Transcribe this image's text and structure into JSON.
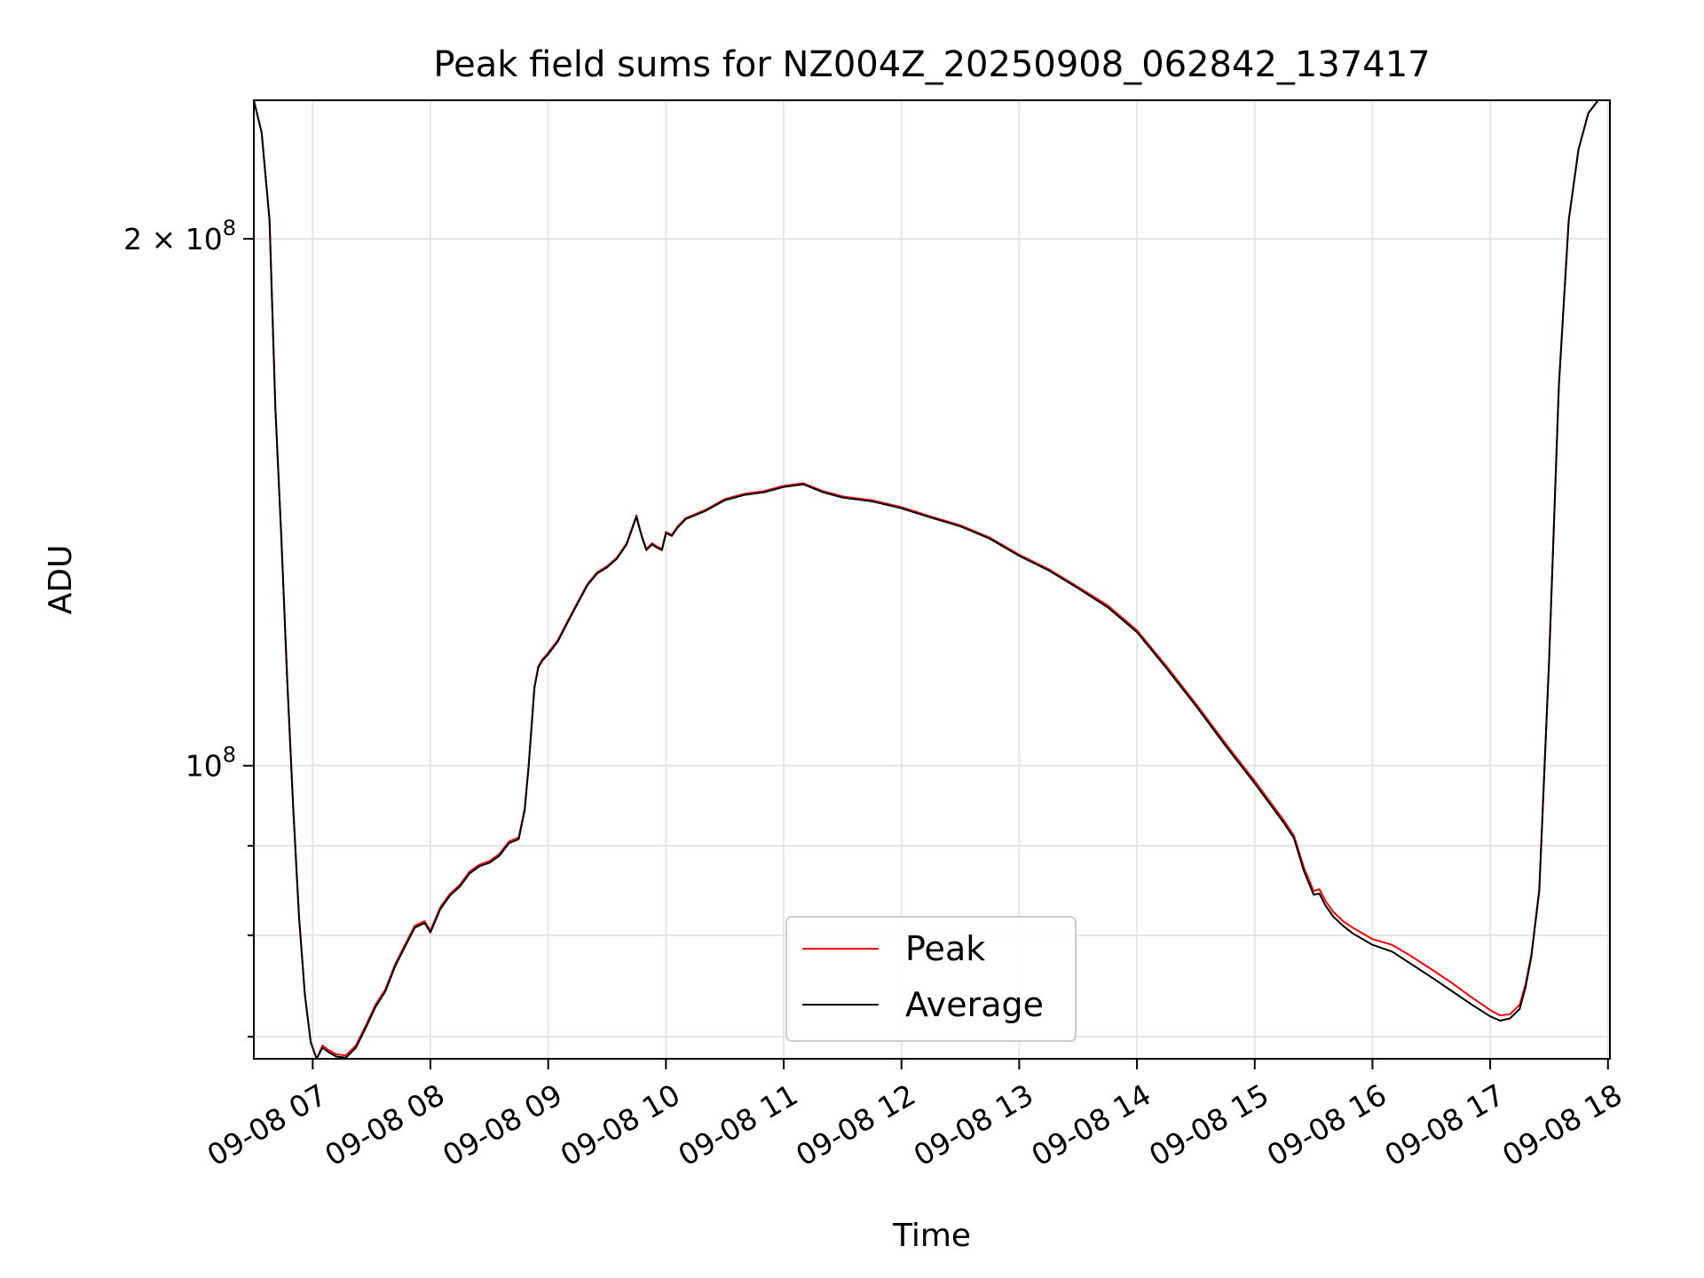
{
  "chart_data": {
    "type": "line",
    "title": "Peak field sums for NZ004Z_20250908_062842_137417",
    "xlabel": "Time",
    "ylabel": "ADU",
    "y_scale": "log",
    "xlim": [
      "09-08 06:30",
      "09-08 18:01"
    ],
    "ylim": [
      68000000,
      240000000
    ],
    "x_tick_labels": [
      "09-08 07",
      "09-08 08",
      "09-08 09",
      "09-08 10",
      "09-08 11",
      "09-08 12",
      "09-08 13",
      "09-08 14",
      "09-08 15",
      "09-08 16",
      "09-08 17",
      "09-08 18"
    ],
    "y_major_tick_labels": [
      {
        "value": 100000000,
        "base": "10",
        "exp": "8"
      },
      {
        "value": 200000000,
        "mantissa": "2 × 10",
        "exp": "8"
      }
    ],
    "y_minor_ticks": [
      70000000,
      80000000,
      90000000
    ],
    "grid": true,
    "legend": {
      "position": "lower center"
    },
    "series": [
      {
        "name": "Peak",
        "color": "#ff0000",
        "x": [
          "06:30",
          "06:34",
          "06:38",
          "06:41",
          "06:44",
          "06:47",
          "06:50",
          "06:53",
          "06:56",
          "06:59",
          "07:02",
          "07:05",
          "07:08",
          "07:12",
          "07:17",
          "07:22",
          "07:27",
          "07:32",
          "07:37",
          "07:42",
          "07:47",
          "07:52",
          "07:57",
          "08:00",
          "08:05",
          "08:10",
          "08:15",
          "08:20",
          "08:25",
          "08:30",
          "08:35",
          "08:40",
          "08:45",
          "08:48",
          "08:50",
          "08:53",
          "08:55",
          "08:57",
          "09:00",
          "09:05",
          "09:10",
          "09:15",
          "09:20",
          "09:25",
          "09:30",
          "09:35",
          "09:40",
          "09:43",
          "09:45",
          "09:46",
          "09:48",
          "09:50",
          "09:53",
          "09:55",
          "09:58",
          "10:00",
          "10:03",
          "10:06",
          "10:10",
          "10:20",
          "10:30",
          "10:40",
          "10:50",
          "11:00",
          "11:10",
          "11:20",
          "11:30",
          "11:45",
          "12:00",
          "12:15",
          "12:30",
          "12:45",
          "13:00",
          "13:15",
          "13:30",
          "13:45",
          "14:00",
          "14:15",
          "14:30",
          "14:45",
          "15:00",
          "15:15",
          "15:20",
          "15:25",
          "15:30",
          "15:33",
          "15:36",
          "15:40",
          "15:45",
          "15:50",
          "16:00",
          "16:10",
          "16:20",
          "16:30",
          "16:40",
          "16:50",
          "17:00",
          "17:05",
          "17:10",
          "17:15",
          "17:18",
          "17:21",
          "17:25",
          "17:30",
          "17:35",
          "17:40",
          "17:45",
          "17:50",
          "17:55",
          "17:58"
        ],
        "values": [
          240000000,
          230000000,
          205000000,
          160000000,
          135000000,
          112000000,
          95000000,
          82000000,
          74000000,
          69500000,
          68000000,
          69200000,
          68800000,
          68400000,
          68300000,
          69200000,
          71000000,
          73000000,
          74500000,
          77000000,
          79000000,
          81000000,
          81500000,
          80500000,
          83000000,
          84500000,
          85500000,
          87000000,
          87800000,
          88200000,
          89000000,
          90500000,
          91000000,
          94500000,
          100000000,
          111000000,
          114000000,
          115000000,
          116000000,
          118000000,
          121000000,
          124000000,
          127000000,
          129000000,
          130000000,
          131500000,
          134000000,
          137000000,
          139000000,
          137500000,
          135000000,
          133000000,
          134000000,
          133500000,
          133000000,
          136000000,
          135500000,
          137000000,
          138500000,
          140000000,
          142000000,
          143000000,
          143500000,
          144500000,
          145000000,
          143500000,
          142500000,
          141800000,
          140500000,
          138800000,
          137200000,
          135000000,
          132000000,
          129500000,
          126500000,
          123500000,
          119500000,
          114000000,
          108500000,
          103000000,
          98000000,
          93000000,
          91200000,
          87500000,
          84800000,
          85000000,
          83700000,
          82500000,
          81500000,
          80800000,
          79600000,
          79000000,
          77800000,
          76500000,
          75200000,
          73800000,
          72500000,
          72000000,
          72100000,
          73000000,
          75000000,
          78000000,
          85000000,
          115000000,
          165000000,
          205000000,
          225000000,
          236000000,
          240000000,
          241000000
        ]
      },
      {
        "name": "Average",
        "color": "#000000",
        "x": [
          "06:30",
          "06:34",
          "06:38",
          "06:41",
          "06:44",
          "06:47",
          "06:50",
          "06:53",
          "06:56",
          "06:59",
          "07:02",
          "07:05",
          "07:08",
          "07:12",
          "07:17",
          "07:22",
          "07:27",
          "07:32",
          "07:37",
          "07:42",
          "07:47",
          "07:52",
          "07:57",
          "08:00",
          "08:05",
          "08:10",
          "08:15",
          "08:20",
          "08:25",
          "08:30",
          "08:35",
          "08:40",
          "08:45",
          "08:48",
          "08:50",
          "08:53",
          "08:55",
          "08:57",
          "09:00",
          "09:05",
          "09:10",
          "09:15",
          "09:20",
          "09:25",
          "09:30",
          "09:35",
          "09:40",
          "09:43",
          "09:45",
          "09:46",
          "09:48",
          "09:50",
          "09:53",
          "09:55",
          "09:58",
          "10:00",
          "10:03",
          "10:06",
          "10:10",
          "10:20",
          "10:30",
          "10:40",
          "10:50",
          "11:00",
          "11:10",
          "11:20",
          "11:30",
          "11:45",
          "12:00",
          "12:15",
          "12:30",
          "12:45",
          "13:00",
          "13:15",
          "13:30",
          "13:45",
          "14:00",
          "14:15",
          "14:30",
          "14:45",
          "15:00",
          "15:15",
          "15:20",
          "15:25",
          "15:30",
          "15:33",
          "15:36",
          "15:40",
          "15:45",
          "15:50",
          "16:00",
          "16:10",
          "16:20",
          "16:30",
          "16:40",
          "16:50",
          "17:00",
          "17:05",
          "17:10",
          "17:15",
          "17:18",
          "17:21",
          "17:25",
          "17:30",
          "17:35",
          "17:40",
          "17:45",
          "17:50",
          "17:55",
          "17:58"
        ],
        "values": [
          240000000,
          230000000,
          205000000,
          160000000,
          135000000,
          112000000,
          95000000,
          82000000,
          74000000,
          69500000,
          68000000,
          69000000,
          68600000,
          68200000,
          68100000,
          69000000,
          70800000,
          72800000,
          74300000,
          76800000,
          78800000,
          80800000,
          81300000,
          80300000,
          82800000,
          84300000,
          85300000,
          86800000,
          87600000,
          88000000,
          88800000,
          90300000,
          90800000,
          94300000,
          99800000,
          110800000,
          113800000,
          114800000,
          115800000,
          117800000,
          120800000,
          123800000,
          126800000,
          128800000,
          129800000,
          131300000,
          133800000,
          136800000,
          138800000,
          137300000,
          134800000,
          132800000,
          133800000,
          133300000,
          132800000,
          135800000,
          135300000,
          136800000,
          138300000,
          139800000,
          141800000,
          142800000,
          143300000,
          144300000,
          144800000,
          143300000,
          142300000,
          141600000,
          140300000,
          138600000,
          137000000,
          134800000,
          131800000,
          129300000,
          126300000,
          123200000,
          119200000,
          113700000,
          108200000,
          102700000,
          97700000,
          92700000,
          90900000,
          87100000,
          84400000,
          84500000,
          83200000,
          82000000,
          81000000,
          80200000,
          79000000,
          78300000,
          77000000,
          75700000,
          74400000,
          73100000,
          71900000,
          71500000,
          71700000,
          72600000,
          74700000,
          77800000,
          84800000,
          115000000,
          165000000,
          205000000,
          225000000,
          236000000,
          240000000,
          241000000
        ]
      }
    ]
  }
}
